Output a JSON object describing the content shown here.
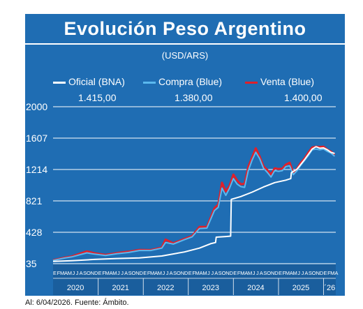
{
  "title": "Evolución Peso Argentino",
  "unit": "(USD/ARS)",
  "legend": [
    {
      "label": "Oficial (BNA)",
      "value": "1.415,00",
      "color": "#ffffff"
    },
    {
      "label": "Compra (Blue)",
      "value": "1.380,00",
      "color": "#5bb8ee"
    },
    {
      "label": "Venta (Blue)",
      "value": "1.400,00",
      "color": "#e0202a"
    }
  ],
  "source": "Al: 6/04/2026. Fuente: Ámbito.",
  "chart_data": {
    "type": "line",
    "title": "Evolución Peso Argentino",
    "ylabel": "(USD/ARS)",
    "yticks": [
      "35",
      "428",
      "821",
      "1214",
      "1607",
      "2000"
    ],
    "ylim": [
      35,
      2000
    ],
    "grid": true,
    "month_letters": [
      "E",
      "F",
      "M",
      "A",
      "M",
      "J",
      "J",
      "A",
      "S",
      "O",
      "N",
      "D"
    ],
    "last_year_month_letters": [
      "E",
      "F",
      "M",
      "A"
    ],
    "x_years": [
      "2020",
      "2021",
      "2022",
      "2023",
      "2024",
      "2025",
      "´26"
    ],
    "series": [
      {
        "name": "Oficial (BNA)",
        "color": "#ffffff",
        "points": [
          [
            "2020-01",
            63
          ],
          [
            "2020-06",
            72
          ],
          [
            "2020-12",
            88
          ],
          [
            "2021-06",
            100
          ],
          [
            "2021-12",
            107
          ],
          [
            "2022-06",
            131
          ],
          [
            "2022-12",
            182
          ],
          [
            "2023-04",
            230
          ],
          [
            "2023-07",
            285
          ],
          [
            "2023-08-10",
            300
          ],
          [
            "2023-08-15",
            367
          ],
          [
            "2023-11",
            375
          ],
          [
            "2023-12-10",
            380
          ],
          [
            "2023-12-15",
            840
          ],
          [
            "2024-03",
            875
          ],
          [
            "2024-06",
            930
          ],
          [
            "2024-09",
            995
          ],
          [
            "2024-12",
            1050
          ],
          [
            "2025-03",
            1080
          ],
          [
            "2025-04-10",
            1100
          ],
          [
            "2025-04-15",
            1175
          ],
          [
            "2025-06",
            1220
          ],
          [
            "2025-08",
            1340
          ],
          [
            "2025-10",
            1470
          ],
          [
            "2025-11",
            1500
          ],
          [
            "2025-12",
            1480
          ],
          [
            "2026-01",
            1485
          ],
          [
            "2026-02",
            1460
          ],
          [
            "2026-03",
            1430
          ],
          [
            "2026-04",
            1415
          ]
        ]
      },
      {
        "name": "Compra (Blue)",
        "color": "#5bb8ee",
        "points": [
          [
            "2020-01",
            75
          ],
          [
            "2020-04",
            105
          ],
          [
            "2020-06",
            120
          ],
          [
            "2020-10",
            170
          ],
          [
            "2020-12",
            155
          ],
          [
            "2021-03",
            138
          ],
          [
            "2021-06",
            160
          ],
          [
            "2021-09",
            175
          ],
          [
            "2021-12",
            200
          ],
          [
            "2022-03",
            200
          ],
          [
            "2022-06",
            230
          ],
          [
            "2022-07",
            300
          ],
          [
            "2022-09",
            280
          ],
          [
            "2022-12",
            335
          ],
          [
            "2023-02",
            370
          ],
          [
            "2023-04",
            475
          ],
          [
            "2023-06",
            480
          ],
          [
            "2023-08",
            700
          ],
          [
            "2023-09",
            740
          ],
          [
            "2023-10",
            980
          ],
          [
            "2023-11",
            890
          ],
          [
            "2023-12",
            980
          ],
          [
            "2024-01",
            1100
          ],
          [
            "2024-02",
            1030
          ],
          [
            "2024-03",
            1000
          ],
          [
            "2024-04",
            990
          ],
          [
            "2024-05",
            1200
          ],
          [
            "2024-06",
            1330
          ],
          [
            "2024-07",
            1430
          ],
          [
            "2024-08",
            1350
          ],
          [
            "2024-09",
            1230
          ],
          [
            "2024-10",
            1180
          ],
          [
            "2024-11",
            1120
          ],
          [
            "2024-12",
            1200
          ],
          [
            "2025-01",
            1190
          ],
          [
            "2025-02",
            1200
          ],
          [
            "2025-03",
            1250
          ],
          [
            "2025-04",
            1260
          ],
          [
            "2025-05",
            1150
          ],
          [
            "2025-06",
            1200
          ],
          [
            "2025-07",
            1270
          ],
          [
            "2025-08",
            1330
          ],
          [
            "2025-09",
            1390
          ],
          [
            "2025-10",
            1460
          ],
          [
            "2025-11",
            1470
          ],
          [
            "2025-12",
            1460
          ],
          [
            "2026-01",
            1470
          ],
          [
            "2026-02",
            1440
          ],
          [
            "2026-03",
            1420
          ],
          [
            "2026-04",
            1380
          ]
        ]
      },
      {
        "name": "Venta (Blue)",
        "color": "#e0202a",
        "points": [
          [
            "2020-01",
            78
          ],
          [
            "2020-04",
            110
          ],
          [
            "2020-06",
            126
          ],
          [
            "2020-10",
            190
          ],
          [
            "2020-12",
            166
          ],
          [
            "2021-03",
            145
          ],
          [
            "2021-06",
            168
          ],
          [
            "2021-09",
            185
          ],
          [
            "2021-12",
            208
          ],
          [
            "2022-03",
            205
          ],
          [
            "2022-06",
            238
          ],
          [
            "2022-07",
            338
          ],
          [
            "2022-09",
            290
          ],
          [
            "2022-12",
            346
          ],
          [
            "2023-02",
            381
          ],
          [
            "2023-04",
            495
          ],
          [
            "2023-06",
            495
          ],
          [
            "2023-08",
            730
          ],
          [
            "2023-09",
            775
          ],
          [
            "2023-10",
            1050
          ],
          [
            "2023-11",
            940
          ],
          [
            "2023-12",
            1010
          ],
          [
            "2024-01",
            1150
          ],
          [
            "2024-02",
            1075
          ],
          [
            "2024-03",
            1030
          ],
          [
            "2024-04",
            1035
          ],
          [
            "2024-05",
            1250
          ],
          [
            "2024-06",
            1365
          ],
          [
            "2024-07",
            1480
          ],
          [
            "2024-08",
            1380
          ],
          [
            "2024-09",
            1255
          ],
          [
            "2024-10",
            1210
          ],
          [
            "2024-11",
            1150
          ],
          [
            "2024-12",
            1230
          ],
          [
            "2025-01",
            1220
          ],
          [
            "2025-02",
            1225
          ],
          [
            "2025-03",
            1275
          ],
          [
            "2025-04",
            1300
          ],
          [
            "2025-05",
            1175
          ],
          [
            "2025-06",
            1225
          ],
          [
            "2025-07",
            1300
          ],
          [
            "2025-08",
            1355
          ],
          [
            "2025-09",
            1430
          ],
          [
            "2025-10",
            1490
          ],
          [
            "2025-11",
            1500
          ],
          [
            "2025-12",
            1495
          ],
          [
            "2026-01",
            1500
          ],
          [
            "2026-02",
            1460
          ],
          [
            "2026-03",
            1440
          ],
          [
            "2026-04",
            1400
          ]
        ]
      }
    ]
  }
}
